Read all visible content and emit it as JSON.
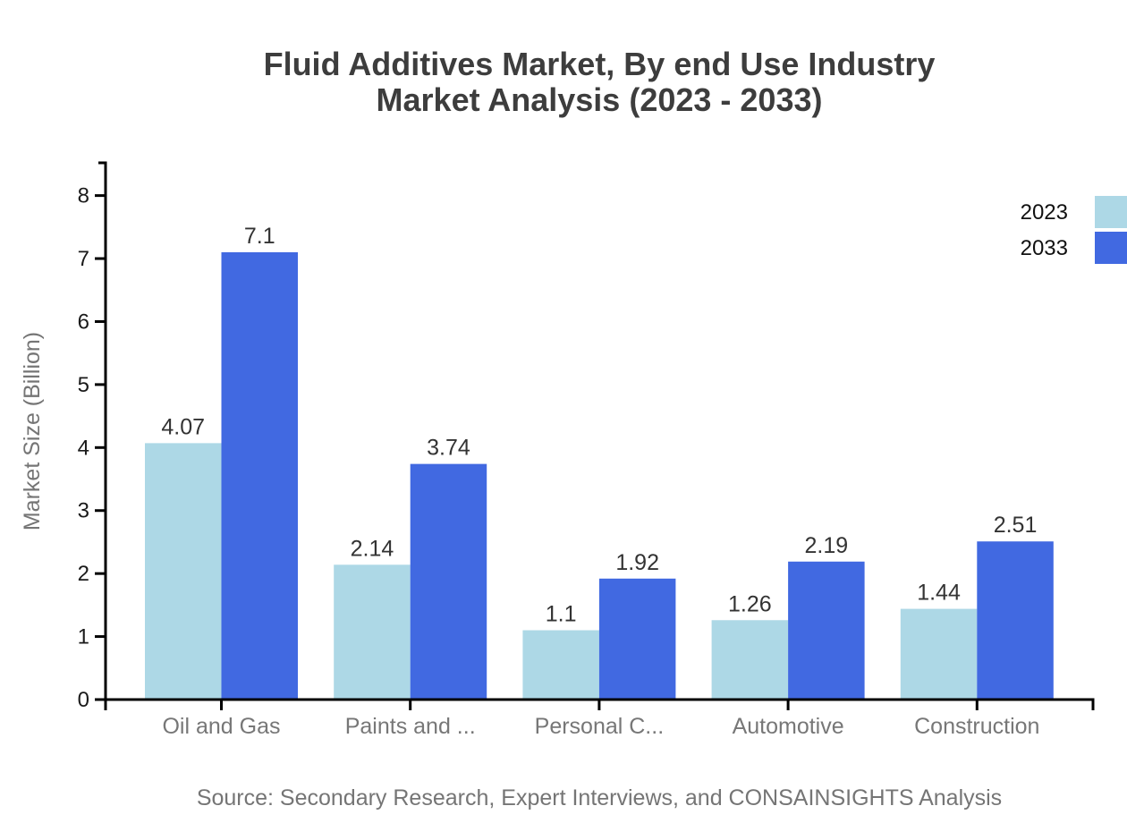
{
  "chart_data": {
    "type": "bar",
    "title_lines": [
      "Fluid Additives Market, By end Use Industry",
      "Market Analysis (2023 - 2033)"
    ],
    "ylabel": "Market Size (Billion)",
    "categories": [
      "Oil and Gas",
      "Paints and ...",
      "Personal C...",
      "Automotive",
      "Construction"
    ],
    "series": [
      {
        "name": "2023",
        "color": "#ADD8E6",
        "values": [
          4.07,
          2.14,
          1.1,
          1.26,
          1.44
        ]
      },
      {
        "name": "2033",
        "color": "#4169E1",
        "values": [
          7.1,
          3.74,
          1.92,
          2.19,
          2.51
        ]
      }
    ],
    "yticks": [
      0,
      1,
      2,
      3,
      4,
      5,
      6,
      7,
      8
    ],
    "ylim": [
      0,
      8.52
    ],
    "grid": false,
    "legend_position": "top-right",
    "axis_color": "#000000",
    "source": "Source: Secondary Research, Expert Interviews, and CONSAINSIGHTS Analysis"
  }
}
